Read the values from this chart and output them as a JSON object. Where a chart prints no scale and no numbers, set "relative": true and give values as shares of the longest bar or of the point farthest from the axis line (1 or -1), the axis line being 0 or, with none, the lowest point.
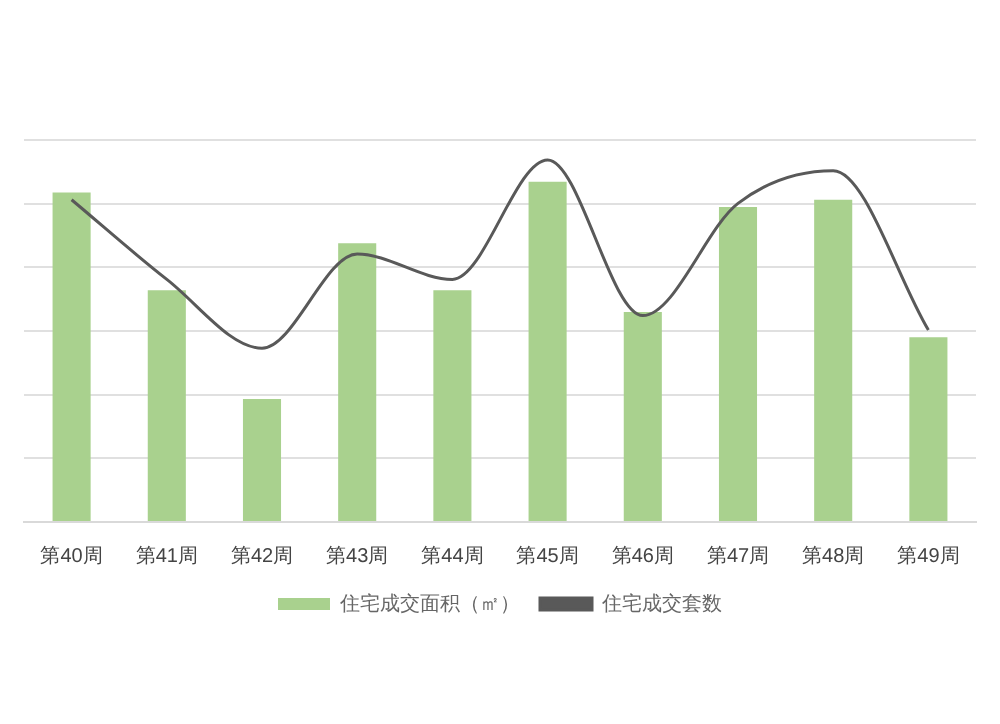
{
  "chart_data": {
    "type": "bar",
    "relative": true,
    "categories": [
      "第40周",
      "第41周",
      "第42周",
      "第43周",
      "第44周",
      "第45周",
      "第46周",
      "第47周",
      "第48周",
      "第49周"
    ],
    "series": [
      {
        "name": "住宅成交面积（㎡）",
        "color": "#a9d18e",
        "values": [
          0.91,
          0.64,
          0.34,
          0.77,
          0.64,
          0.94,
          0.58,
          0.87,
          0.89,
          0.51
        ]
      },
      {
        "name": "住宅成交套数",
        "type": "line",
        "color": "#595959",
        "values": [
          0.89,
          0.67,
          0.48,
          0.74,
          0.67,
          1,
          0.57,
          0.88,
          0.97,
          0.53
        ]
      }
    ],
    "grid": "y",
    "legend": "bottom",
    "marker": "none"
  }
}
